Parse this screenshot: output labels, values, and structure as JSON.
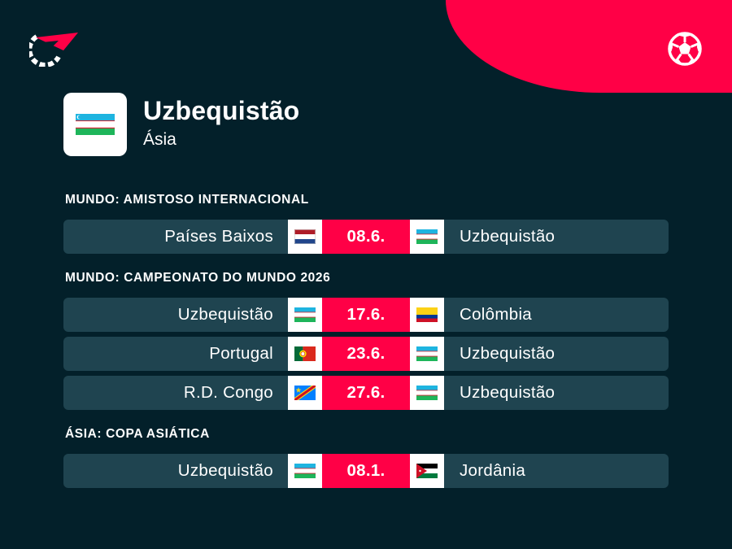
{
  "header": {
    "logo_icon": "flashscore-logo-icon",
    "sport_icon": "football-icon",
    "accent_color": "#ff0046",
    "background_color": "#03202a"
  },
  "team": {
    "name": "Uzbequistão",
    "region": "Ásia",
    "flag": "uzbekistan-flag"
  },
  "sections": [
    {
      "title": "MUNDO: AMISTOSO INTERNACIONAL",
      "matches": [
        {
          "home": "Países Baixos",
          "home_flag": "netherlands-flag",
          "date": "08.6.",
          "away": "Uzbequistão",
          "away_flag": "uzbekistan-flag"
        }
      ]
    },
    {
      "title": "MUNDO: CAMPEONATO DO MUNDO 2026",
      "matches": [
        {
          "home": "Uzbequistão",
          "home_flag": "uzbekistan-flag",
          "date": "17.6.",
          "away": "Colômbia",
          "away_flag": "colombia-flag"
        },
        {
          "home": "Portugal",
          "home_flag": "portugal-flag",
          "date": "23.6.",
          "away": "Uzbequistão",
          "away_flag": "uzbekistan-flag"
        },
        {
          "home": "R.D. Congo",
          "home_flag": "dr-congo-flag",
          "date": "27.6.",
          "away": "Uzbequistão",
          "away_flag": "uzbekistan-flag"
        }
      ]
    },
    {
      "title": "ÁSIA: COPA ASIÁTICA",
      "matches": [
        {
          "home": "Uzbequistão",
          "home_flag": "uzbekistan-flag",
          "date": "08.1.",
          "away": "Jordânia",
          "away_flag": "jordan-flag"
        }
      ]
    }
  ]
}
